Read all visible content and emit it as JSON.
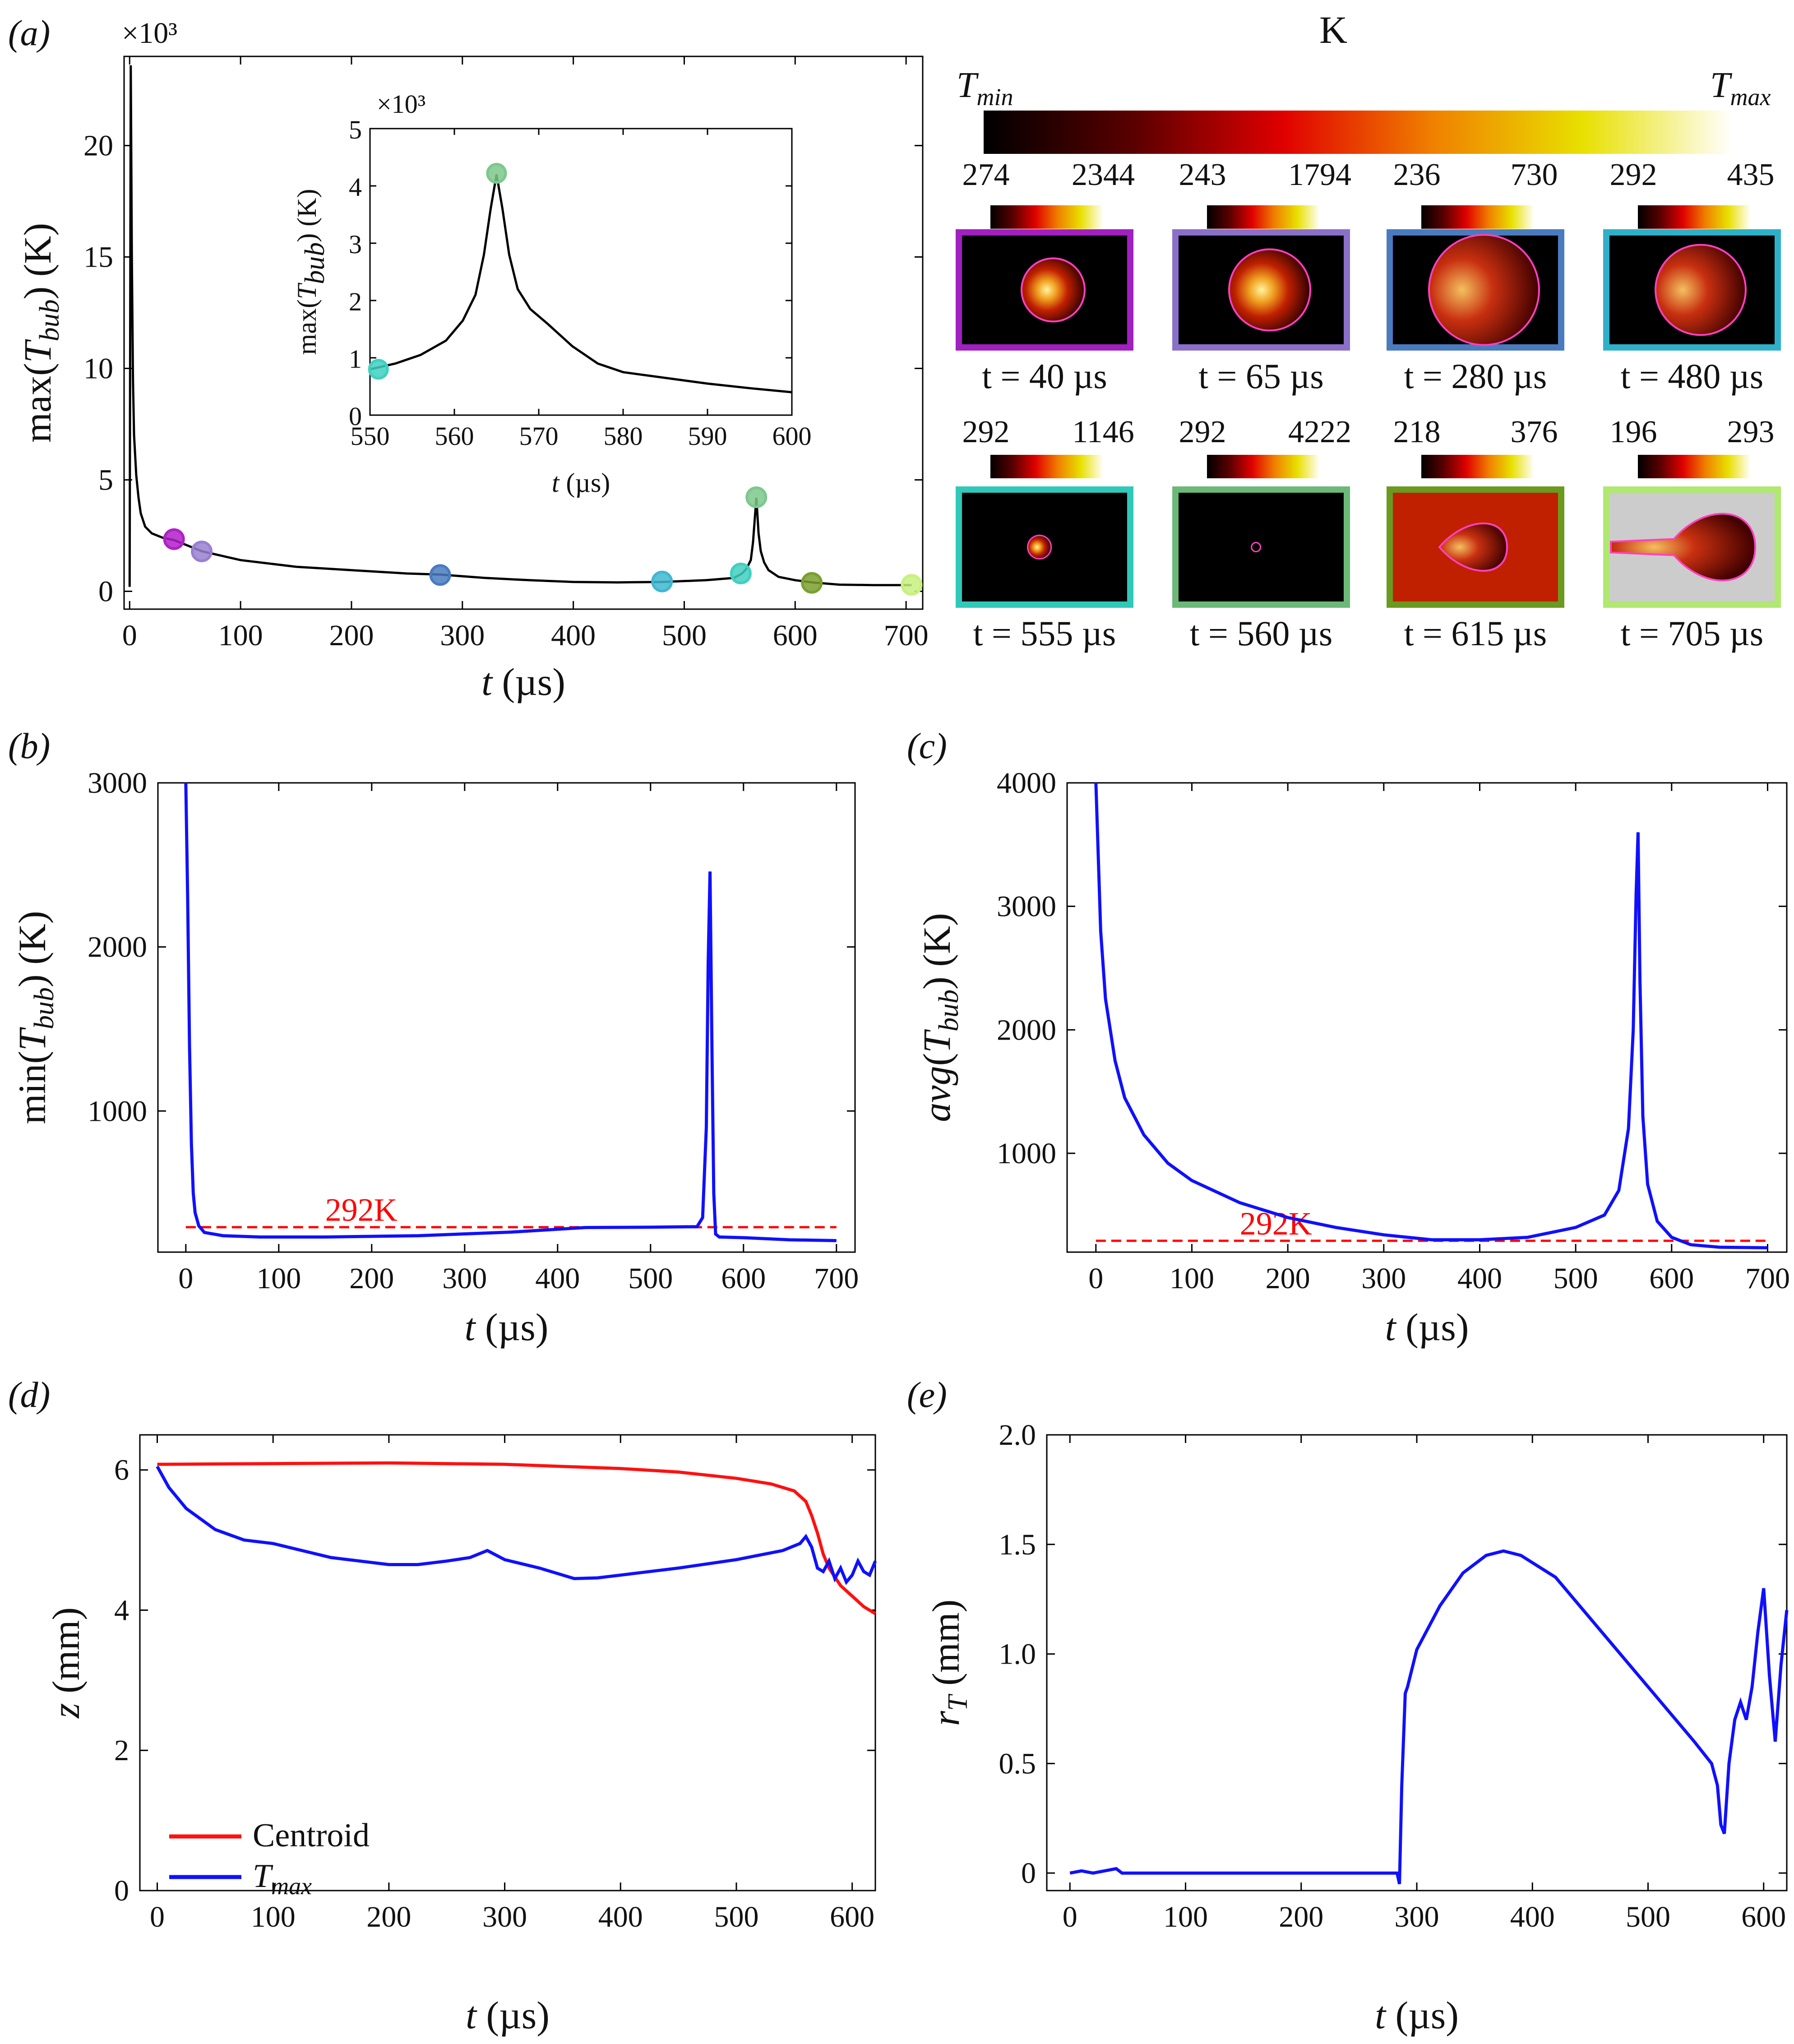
{
  "chart_data": [
    {
      "panel": "(a)",
      "type": "line",
      "xlabel": "t (µs)",
      "ylabel": "max(Tbub) (K)",
      "y_multiplier": "×10³",
      "xlim": [
        -5,
        715
      ],
      "ylim": [
        -0.8,
        24
      ],
      "xticks": [
        0,
        100,
        200,
        300,
        400,
        500,
        600,
        700
      ],
      "yticks": [
        0,
        5,
        10,
        15,
        20
      ],
      "color": "#000000",
      "series": [
        {
          "x": [
            0,
            1,
            2,
            3,
            4,
            6,
            8,
            10,
            14,
            20,
            30,
            40,
            65,
            100,
            150,
            200,
            250,
            280,
            320,
            360,
            400,
            440,
            480,
            520,
            545,
            552,
            556,
            560,
            562,
            565,
            567,
            569,
            572,
            576,
            585,
            600,
            615,
            640,
            670,
            705
          ],
          "y": [
            0.2,
            23.6,
            15,
            9.5,
            7,
            5.2,
            4.2,
            3.5,
            2.9,
            2.6,
            2.4,
            2.3,
            1.8,
            1.4,
            1.1,
            0.95,
            0.8,
            0.75,
            0.6,
            0.5,
            0.42,
            0.4,
            0.42,
            0.5,
            0.6,
            0.8,
            1.0,
            1.4,
            2.2,
            4.2,
            2.6,
            1.8,
            1.3,
            0.95,
            0.65,
            0.5,
            0.4,
            0.3,
            0.28,
            0.28
          ]
        }
      ],
      "markers": [
        {
          "t": 40,
          "y": 2.34,
          "color": "#b020c8"
        },
        {
          "t": 65,
          "y": 1.79,
          "color": "#9a80d0"
        },
        {
          "t": 280,
          "y": 0.73,
          "color": "#4a7bbf"
        },
        {
          "t": 480,
          "y": 0.44,
          "color": "#40b8d0"
        },
        {
          "t": 551,
          "y": 0.8,
          "color": "#40d0c0"
        },
        {
          "t": 565,
          "y": 4.22,
          "color": "#7cc88c"
        },
        {
          "t": 615,
          "y": 0.38,
          "color": "#7aa030"
        },
        {
          "t": 705,
          "y": 0.29,
          "color": "#c8f080"
        }
      ],
      "inset": {
        "xlabel": "t (µs)",
        "ylabel": "max(Tbub) (K)",
        "y_multiplier": "×10³",
        "xlim": [
          550,
          600
        ],
        "ylim": [
          0,
          5
        ],
        "xticks": [
          550,
          560,
          570,
          580,
          590,
          600
        ],
        "yticks": [
          0,
          1,
          2,
          3,
          4,
          5
        ],
        "x": [
          550,
          553,
          556,
          559,
          561,
          562.5,
          563.5,
          564.3,
          565,
          565.7,
          566.5,
          567.5,
          569,
          571,
          574,
          577,
          580,
          585,
          590,
          595,
          600
        ],
        "y": [
          0.8,
          0.9,
          1.05,
          1.3,
          1.65,
          2.1,
          2.8,
          3.6,
          4.2,
          3.6,
          2.8,
          2.2,
          1.85,
          1.6,
          1.2,
          0.9,
          0.75,
          0.65,
          0.55,
          0.47,
          0.4
        ],
        "markers": [
          {
            "t": 551,
            "y": 0.8,
            "color": "#40d0c0"
          },
          {
            "t": 565,
            "y": 4.22,
            "color": "#7cc88c"
          }
        ]
      }
    },
    {
      "panel": "(b)",
      "type": "line",
      "xlabel": "t (µs)",
      "ylabel": "min(Tbub) (K)",
      "xlim": [
        -30,
        720
      ],
      "ylim": [
        140,
        3000
      ],
      "xticks": [
        0,
        100,
        200,
        300,
        400,
        500,
        600,
        700
      ],
      "yticks": [
        1000,
        2000,
        3000
      ],
      "color": "#1010ff",
      "reference": {
        "value": 292,
        "label": "292K",
        "color": "#ff0000",
        "x_range": [
          0,
          700
        ]
      },
      "series": [
        {
          "x": [
            0,
            2,
            4,
            6,
            8,
            10,
            14,
            20,
            40,
            80,
            150,
            250,
            350,
            430,
            500,
            550,
            556,
            560,
            562,
            564,
            566,
            568,
            570,
            574,
            600,
            650,
            700
          ],
          "y": [
            3000,
            2300,
            1400,
            800,
            500,
            380,
            300,
            260,
            240,
            232,
            232,
            240,
            262,
            290,
            292,
            295,
            350,
            900,
            1900,
            2460,
            1400,
            500,
            250,
            232,
            228,
            215,
            210
          ]
        }
      ]
    },
    {
      "panel": "(c)",
      "type": "line",
      "xlabel": "t (µs)",
      "ylabel": "avg(Tbub) (K)",
      "xlim": [
        -30,
        720
      ],
      "ylim": [
        200,
        4000
      ],
      "xticks": [
        0,
        100,
        200,
        300,
        400,
        500,
        600,
        700
      ],
      "yticks": [
        1000,
        2000,
        3000,
        4000
      ],
      "color": "#1010ff",
      "reference": {
        "value": 292,
        "label": "292K",
        "color": "#ff0000",
        "x_range": [
          0,
          700
        ]
      },
      "series": [
        {
          "x": [
            0,
            5,
            10,
            20,
            30,
            50,
            75,
            100,
            150,
            200,
            250,
            300,
            350,
            400,
            450,
            500,
            530,
            545,
            555,
            560,
            563,
            565,
            567,
            570,
            575,
            585,
            600,
            620,
            650,
            700
          ],
          "y": [
            4000,
            2800,
            2250,
            1750,
            1450,
            1150,
            920,
            780,
            600,
            480,
            400,
            340,
            300,
            300,
            320,
            400,
            500,
            700,
            1200,
            2000,
            3100,
            3600,
            2400,
            1300,
            750,
            450,
            320,
            260,
            240,
            235
          ]
        }
      ]
    },
    {
      "panel": "(d)",
      "type": "line",
      "xlabel": "t (µs)",
      "ylabel": "z (mm)",
      "xlim": [
        -15,
        620
      ],
      "ylim": [
        0,
        6.5
      ],
      "xticks": [
        0,
        100,
        200,
        300,
        400,
        500,
        600
      ],
      "yticks": [
        0,
        2,
        4,
        6
      ],
      "legend": [
        {
          "label": "Centroid",
          "color": "#ff1010"
        },
        {
          "label": "Tmax",
          "color": "#1010ff"
        }
      ],
      "series": [
        {
          "name": "Centroid",
          "color": "#ff1010",
          "x": [
            0,
            100,
            200,
            300,
            400,
            450,
            500,
            530,
            550,
            560,
            565,
            570,
            575,
            580,
            590,
            600,
            610,
            620
          ],
          "y": [
            6.08,
            6.09,
            6.1,
            6.08,
            6.02,
            5.97,
            5.88,
            5.8,
            5.7,
            5.55,
            5.35,
            5.1,
            4.8,
            4.6,
            4.35,
            4.2,
            4.05,
            3.95
          ]
        },
        {
          "name": "Tmax",
          "color": "#1010ff",
          "x": [
            0,
            10,
            25,
            50,
            75,
            100,
            125,
            150,
            175,
            200,
            225,
            250,
            270,
            285,
            300,
            330,
            360,
            380,
            400,
            450,
            500,
            540,
            555,
            560,
            565,
            570,
            575,
            580,
            585,
            590,
            595,
            600,
            605,
            610,
            615,
            620
          ],
          "y": [
            6.05,
            5.75,
            5.45,
            5.15,
            5.0,
            4.95,
            4.85,
            4.75,
            4.7,
            4.65,
            4.65,
            4.7,
            4.75,
            4.85,
            4.72,
            4.6,
            4.45,
            4.46,
            4.5,
            4.6,
            4.72,
            4.85,
            4.95,
            5.05,
            4.9,
            4.6,
            4.55,
            4.7,
            4.45,
            4.6,
            4.4,
            4.5,
            4.7,
            4.55,
            4.5,
            4.7
          ]
        }
      ]
    },
    {
      "panel": "(e)",
      "type": "line",
      "xlabel": "t (µs)",
      "ylabel": "rTmax (mm)",
      "xlim": [
        -20,
        620
      ],
      "ylim": [
        -0.08,
        2.0
      ],
      "xticks": [
        0,
        100,
        200,
        300,
        400,
        500,
        600
      ],
      "yticks": [
        0,
        0.5,
        1.0,
        1.5,
        2.0
      ],
      "ytick_labels": [
        "0",
        "0.5",
        "1.0",
        "1.5",
        "2.0"
      ],
      "color": "#1010ff",
      "series": [
        {
          "x": [
            0,
            10,
            20,
            30,
            40,
            45,
            100,
            200,
            283,
            285,
            287,
            290,
            292,
            300,
            320,
            340,
            360,
            375,
            390,
            420,
            460,
            500,
            540,
            555,
            560,
            563,
            566,
            570,
            575,
            580,
            585,
            590,
            595,
            600,
            605,
            610,
            615,
            620
          ],
          "y": [
            0,
            0.01,
            0,
            0.01,
            0.02,
            0,
            0,
            0,
            0,
            -0.05,
            0.4,
            0.82,
            0.85,
            1.02,
            1.22,
            1.37,
            1.45,
            1.47,
            1.45,
            1.35,
            1.1,
            0.85,
            0.6,
            0.5,
            0.4,
            0.22,
            0.18,
            0.5,
            0.7,
            0.78,
            0.7,
            0.85,
            1.1,
            1.3,
            0.9,
            0.6,
            0.95,
            1.2
          ]
        }
      ]
    }
  ],
  "colorbar": {
    "label": "K",
    "min_label": "Tmin",
    "max_label": "Tmax",
    "gradient": [
      "#000000",
      "#5a0000",
      "#e00000",
      "#f08000",
      "#e8e000",
      "#ffffff"
    ]
  },
  "snapshots": [
    {
      "tmin": "274",
      "tmax": "2344",
      "time": "t = 40 µs",
      "border": "#a020c0",
      "bg": "#000000",
      "shape": "circle-small"
    },
    {
      "tmin": "243",
      "tmax": "1794",
      "time": "t = 65 µs",
      "border": "#8a70c8",
      "bg": "#000000",
      "shape": "circle-med"
    },
    {
      "tmin": "236",
      "tmax": "730",
      "time": "t = 280 µs",
      "border": "#4a7bbf",
      "bg": "#000000",
      "shape": "circle-large"
    },
    {
      "tmin": "292",
      "tmax": "435",
      "time": "t = 480 µs",
      "border": "#30b0c8",
      "bg": "#000000",
      "shape": "circle-med2"
    },
    {
      "tmin": "292",
      "tmax": "1146",
      "time": "t = 555 µs",
      "border": "#30c8b8",
      "bg": "#000000",
      "shape": "tiny"
    },
    {
      "tmin": "292",
      "tmax": "4222",
      "time": "t = 560 µs",
      "border": "#6cb878",
      "bg": "#000000",
      "shape": "dot"
    },
    {
      "tmin": "218",
      "tmax": "376",
      "time": "t = 615 µs",
      "border": "#6a9a20",
      "bg": "#c02000",
      "shape": "jet-small"
    },
    {
      "tmin": "196",
      "tmax": "293",
      "time": "t = 705 µs",
      "border": "#b0e870",
      "bg": "#cccccc",
      "shape": "jet-large"
    }
  ],
  "panel_labels": [
    "(a)",
    "(b)",
    "(c)",
    "(d)",
    "(e)"
  ]
}
